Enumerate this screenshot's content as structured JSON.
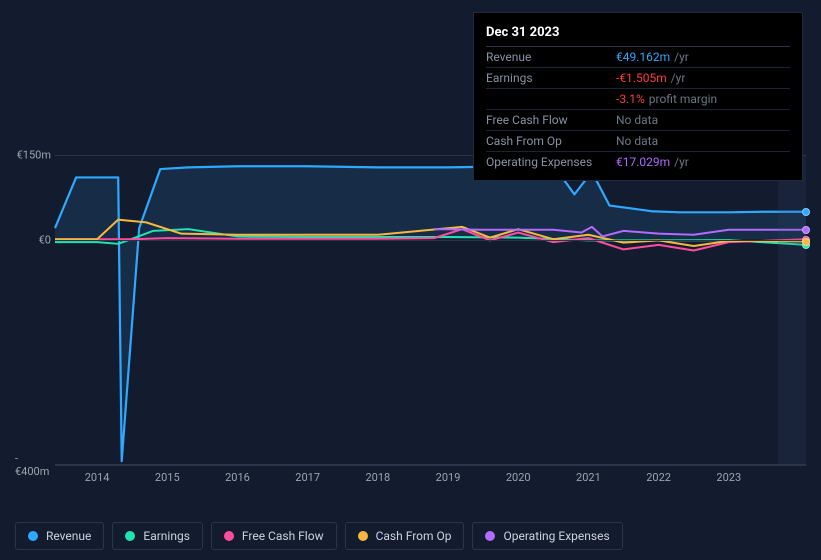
{
  "tooltip": {
    "date": "Dec 31 2023",
    "rows": [
      {
        "label": "Revenue",
        "value": "€49.162m",
        "suffix": "/yr",
        "color": "#2fa8ff"
      },
      {
        "label": "Earnings",
        "value": "-€1.505m",
        "suffix": "/yr",
        "color": "#ff3b3b"
      },
      {
        "label": "",
        "value": "-3.1%",
        "suffix": "profit margin",
        "color": "#ff3b3b"
      },
      {
        "label": "Free Cash Flow",
        "value": "No data",
        "suffix": "",
        "color": "#6b7585",
        "nodata": true
      },
      {
        "label": "Cash From Op",
        "value": "No data",
        "suffix": "",
        "color": "#6b7585",
        "nodata": true
      },
      {
        "label": "Operating Expenses",
        "value": "€17.029m",
        "suffix": "/yr",
        "color": "#b16bff"
      }
    ]
  },
  "chart": {
    "ylim": [
      -400,
      150
    ],
    "yticks": [
      {
        "v": 150,
        "label": "€150m"
      },
      {
        "v": 0,
        "label": "€0"
      },
      {
        "v": -400,
        "label": "-€400m"
      }
    ],
    "xrange": [
      2013.4,
      2024.1
    ],
    "xticks": [
      2014,
      2015,
      2016,
      2017,
      2018,
      2019,
      2020,
      2021,
      2022,
      2023
    ],
    "future_start": 2023.7,
    "background": "#131c2e",
    "grid_color": "#2a3548",
    "series": [
      {
        "key": "revenue",
        "label": "Revenue",
        "color": "#2fa8ff",
        "stroke_width": 2.2,
        "area": true,
        "area_opacity": 0.12,
        "data": [
          [
            2013.4,
            20
          ],
          [
            2013.7,
            110
          ],
          [
            2014.0,
            110
          ],
          [
            2014.3,
            110
          ],
          [
            2014.35,
            -395
          ],
          [
            2014.6,
            20
          ],
          [
            2014.9,
            125
          ],
          [
            2015.3,
            128
          ],
          [
            2016.0,
            130
          ],
          [
            2017.0,
            130
          ],
          [
            2018.0,
            128
          ],
          [
            2019.0,
            128
          ],
          [
            2020.0,
            130
          ],
          [
            2020.5,
            132
          ],
          [
            2020.8,
            80
          ],
          [
            2021.05,
            120
          ],
          [
            2021.3,
            60
          ],
          [
            2021.6,
            55
          ],
          [
            2021.9,
            50
          ],
          [
            2022.3,
            48
          ],
          [
            2023.0,
            48
          ],
          [
            2023.5,
            49
          ],
          [
            2024.1,
            49
          ]
        ]
      },
      {
        "key": "earnings",
        "label": "Earnings",
        "color": "#23e2b2",
        "stroke_width": 2,
        "data": [
          [
            2013.4,
            -5
          ],
          [
            2014.0,
            -5
          ],
          [
            2014.3,
            -8
          ],
          [
            2014.35,
            -6
          ],
          [
            2014.8,
            15
          ],
          [
            2015.3,
            18
          ],
          [
            2016.0,
            5
          ],
          [
            2017.0,
            4
          ],
          [
            2018.0,
            4
          ],
          [
            2018.5,
            4
          ],
          [
            2019.0,
            4
          ],
          [
            2020.0,
            3
          ],
          [
            2021.0,
            -2
          ],
          [
            2022.0,
            -2
          ],
          [
            2023.0,
            -1.5
          ],
          [
            2024.1,
            -10
          ]
        ]
      },
      {
        "key": "fcf",
        "label": "Free Cash Flow",
        "color": "#ff4d9d",
        "stroke_width": 2,
        "data": [
          [
            2013.4,
            0
          ],
          [
            2014.5,
            0
          ],
          [
            2015.0,
            2
          ],
          [
            2016.0,
            1
          ],
          [
            2017.0,
            1
          ],
          [
            2018.0,
            1
          ],
          [
            2018.8,
            2
          ],
          [
            2019.2,
            18
          ],
          [
            2019.6,
            -2
          ],
          [
            2020.0,
            12
          ],
          [
            2020.5,
            -5
          ],
          [
            2021.0,
            2
          ],
          [
            2021.5,
            -18
          ],
          [
            2022.0,
            -10
          ],
          [
            2022.5,
            -20
          ],
          [
            2023.0,
            -5
          ],
          [
            2024.1,
            0
          ]
        ]
      },
      {
        "key": "cfo",
        "label": "Cash From Op",
        "color": "#f5b93f",
        "stroke_width": 2,
        "data": [
          [
            2013.4,
            0
          ],
          [
            2014.0,
            0
          ],
          [
            2014.3,
            35
          ],
          [
            2014.7,
            30
          ],
          [
            2015.2,
            10
          ],
          [
            2016.0,
            8
          ],
          [
            2017.0,
            8
          ],
          [
            2018.0,
            8
          ],
          [
            2019.2,
            22
          ],
          [
            2019.6,
            3
          ],
          [
            2020.0,
            18
          ],
          [
            2020.5,
            0
          ],
          [
            2021.0,
            8
          ],
          [
            2021.5,
            -6
          ],
          [
            2022.0,
            -2
          ],
          [
            2022.5,
            -12
          ],
          [
            2023.0,
            -3
          ],
          [
            2024.1,
            -4
          ]
        ]
      },
      {
        "key": "opex",
        "label": "Operating Expenses",
        "color": "#b16bff",
        "stroke_width": 2,
        "data": [
          [
            2018.8,
            18
          ],
          [
            2019.5,
            17
          ],
          [
            2020.0,
            17
          ],
          [
            2020.5,
            17
          ],
          [
            2020.9,
            12
          ],
          [
            2021.05,
            22
          ],
          [
            2021.2,
            5
          ],
          [
            2021.5,
            15
          ],
          [
            2022.0,
            10
          ],
          [
            2022.5,
            8
          ],
          [
            2023.0,
            17
          ],
          [
            2024.1,
            17
          ]
        ]
      }
    ]
  },
  "legend": [
    {
      "label": "Revenue",
      "color": "#2fa8ff",
      "key": "revenue"
    },
    {
      "label": "Earnings",
      "color": "#23e2b2",
      "key": "earnings"
    },
    {
      "label": "Free Cash Flow",
      "color": "#ff4d9d",
      "key": "fcf"
    },
    {
      "label": "Cash From Op",
      "color": "#f5b93f",
      "key": "cfo"
    },
    {
      "label": "Operating Expenses",
      "color": "#b16bff",
      "key": "opex"
    }
  ]
}
